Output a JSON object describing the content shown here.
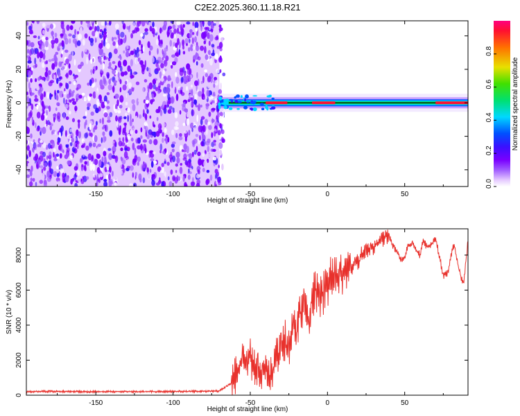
{
  "title": "C2E2.2025.360.11.18.R21",
  "colors": {
    "snr_line": "#e8312c",
    "frame": "#000000",
    "colormap": [
      "#ffffff",
      "#e4c8ff",
      "#a05cff",
      "#7a00ff",
      "#3a10ff",
      "#0050ff",
      "#00d8ff",
      "#00e070",
      "#40e000",
      "#e8e000",
      "#ff7000",
      "#ff1030",
      "#ff0080"
    ]
  },
  "chart_data": [
    {
      "type": "heatmap",
      "name": "spectrogram",
      "title": "C2E2.2025.360.11.18.R21",
      "xlabel": "Height of straight line (km)",
      "ylabel": "Frequency (Hz)",
      "xlim": [
        -195,
        91
      ],
      "ylim": [
        -50,
        49
      ],
      "xticks": [
        -150,
        -100,
        -50,
        0,
        50
      ],
      "yticks": [
        -40,
        -20,
        0,
        20,
        40
      ],
      "noise_region_x": [
        -195,
        -70
      ],
      "signal_onset_x": -70,
      "signal_freq_hz": 0,
      "colorbar": {
        "label": "Normalized spectral amplitude",
        "range": [
          0,
          1
        ],
        "ticks": [
          "0.0",
          "0.2",
          "0.4",
          "0.6",
          "0.8"
        ]
      }
    },
    {
      "type": "line",
      "name": "snr",
      "xlabel": "Height of straight line (km)",
      "ylabel": "SNR (10 * v/v)",
      "xlim": [
        -195,
        91
      ],
      "ylim": [
        0,
        9500
      ],
      "xticks": [
        -150,
        -100,
        -50,
        0,
        50
      ],
      "yticks": [
        0,
        2000,
        4000,
        6000,
        8000
      ],
      "series": [
        {
          "name": "SNR",
          "x": [
            -195,
            -180,
            -160,
            -140,
            -120,
            -100,
            -80,
            -70,
            -62,
            -58,
            -55,
            -52,
            -50,
            -48,
            -45,
            -42,
            -40,
            -38,
            -35,
            -33,
            -30,
            -28,
            -25,
            -22,
            -20,
            -18,
            -15,
            -12,
            -10,
            -8,
            -5,
            -2,
            0,
            2,
            5,
            8,
            10,
            12,
            15,
            18,
            20,
            22,
            25,
            28,
            30,
            32,
            35,
            37,
            40,
            42,
            45,
            48,
            50,
            52,
            55,
            58,
            60,
            62,
            65,
            68,
            70,
            72,
            75,
            78,
            80,
            82,
            85,
            88,
            91
          ],
          "y": [
            200,
            220,
            200,
            210,
            200,
            215,
            220,
            240,
            700,
            1400,
            1900,
            1400,
            2300,
            1500,
            1600,
            1100,
            1700,
            900,
            1400,
            2200,
            2700,
            3200,
            2500,
            3900,
            3500,
            4600,
            5100,
            4000,
            5600,
            6000,
            5700,
            5900,
            6100,
            6800,
            6700,
            7100,
            6900,
            7400,
            7200,
            7700,
            7500,
            8000,
            8200,
            8500,
            8400,
            8700,
            8900,
            9000,
            9100,
            8600,
            8200,
            7700,
            7900,
            8500,
            8700,
            8200,
            8000,
            8800,
            8400,
            8700,
            9000,
            8100,
            6800,
            7000,
            8000,
            8600,
            7200,
            6300,
            8800
          ]
        }
      ]
    }
  ]
}
